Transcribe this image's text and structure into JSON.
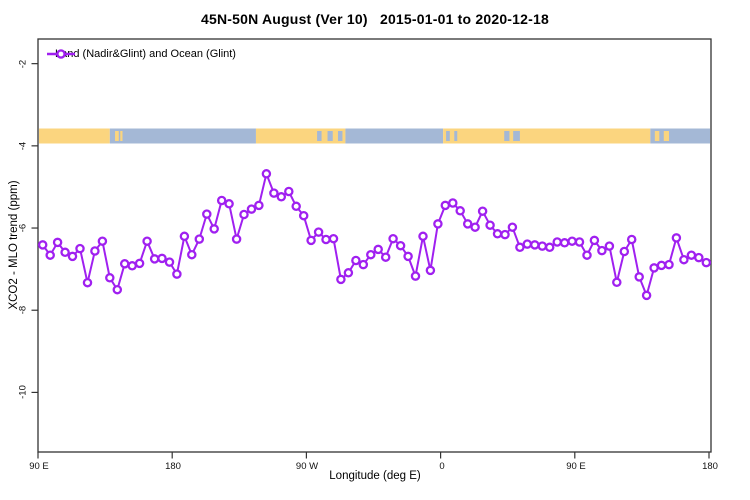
{
  "title": "45N-50N August (Ver 10)   2015-01-01 to 2020-12-18",
  "legend": {
    "label": "Land (Nadir&Glint) and Ocean (Glint)",
    "marker": "open-circle-on-line",
    "series_color": "#A020F0"
  },
  "axes": {
    "x": {
      "label": "Longitude (deg E)",
      "range_deg": [
        90,
        540
      ],
      "ticks": [
        {
          "lon": 90,
          "label": "90 E"
        },
        {
          "lon": 180,
          "label": "180"
        },
        {
          "lon": 270,
          "label": "90 W"
        },
        {
          "lon": 360,
          "label": "0"
        },
        {
          "lon": 450,
          "label": "90 E"
        },
        {
          "lon": 540,
          "label": "180"
        }
      ]
    },
    "y": {
      "label": "XCO2 - MLO trend (ppm)",
      "range_ppm": [
        -11.45,
        -1.4
      ],
      "ticks": [
        {
          "v": -2,
          "label": "-2"
        },
        {
          "v": -4,
          "label": "-4"
        },
        {
          "v": -6,
          "label": "-6"
        },
        {
          "v": -8,
          "label": "-8"
        },
        {
          "v": -10,
          "label": "-10"
        }
      ]
    }
  },
  "surface_band": {
    "description": "land/ocean strip along 45N-50N",
    "land_color": "#FBD57F",
    "ocean_color": "#A4B8D6",
    "segments": [
      {
        "type": "land",
        "from": 90,
        "to": 137.5
      },
      {
        "type": "ocean",
        "from": 137.5,
        "to": 235.5
      },
      {
        "type": "land",
        "from": 235.5,
        "to": 295.5
      },
      {
        "type": "ocean",
        "from": 295.5,
        "to": 361
      },
      {
        "type": "land",
        "from": 361,
        "to": 500
      },
      {
        "type": "ocean",
        "from": 500,
        "to": 540
      }
    ],
    "specks": [
      {
        "type": "land",
        "from": 141,
        "to": 143.5
      },
      {
        "type": "land",
        "from": 144.5,
        "to": 146
      },
      {
        "type": "ocean",
        "from": 276.5,
        "to": 279.5
      },
      {
        "type": "ocean",
        "from": 283.5,
        "to": 287
      },
      {
        "type": "ocean",
        "from": 290.5,
        "to": 293.5
      },
      {
        "type": "ocean",
        "from": 363,
        "to": 365.5
      },
      {
        "type": "ocean",
        "from": 368.5,
        "to": 370.5
      },
      {
        "type": "ocean",
        "from": 402,
        "to": 405.5
      },
      {
        "type": "ocean",
        "from": 408,
        "to": 412.5
      },
      {
        "type": "land",
        "from": 503,
        "to": 506
      },
      {
        "type": "land",
        "from": 509,
        "to": 512.5
      }
    ]
  },
  "chart_data": {
    "type": "line",
    "title": "45N-50N August (Ver 10)   2015-01-01 to 2020-12-18",
    "xlabel": "Longitude (deg E)",
    "ylabel": "XCO2 - MLO trend (ppm)",
    "xlim": [
      90,
      540
    ],
    "ylim": [
      -11.45,
      -1.4
    ],
    "grid": false,
    "legend_position": "top-left",
    "marker": "open-circle",
    "x_start_deg": 92.5,
    "x_step_deg": 5,
    "series": [
      {
        "name": "Land (Nadir&Glint) and Ocean (Glint)",
        "color": "#A020F0",
        "values": [
          -6.41,
          -6.66,
          -6.35,
          -6.59,
          -6.69,
          -6.5,
          -7.33,
          -6.56,
          -6.32,
          -7.21,
          -7.5,
          -6.87,
          -6.92,
          -6.86,
          -6.32,
          -6.75,
          -6.74,
          -6.83,
          -7.12,
          -6.2,
          -6.65,
          -6.27,
          -5.66,
          -6.02,
          -5.33,
          -5.41,
          -6.27,
          -5.67,
          -5.54,
          -5.45,
          -4.68,
          -5.15,
          -5.24,
          -5.11,
          -5.47,
          -5.7,
          -6.3,
          -6.1,
          -6.28,
          -6.26,
          -7.25,
          -7.09,
          -6.79,
          -6.89,
          -6.65,
          -6.52,
          -6.71,
          -6.26,
          -6.43,
          -6.69,
          -7.17,
          -6.2,
          -7.03,
          -5.9,
          -5.45,
          -5.39,
          -5.58,
          -5.9,
          -5.98,
          -5.59,
          -5.93,
          -6.14,
          -6.16,
          -5.98,
          -6.47,
          -6.39,
          -6.41,
          -6.44,
          -6.47,
          -6.34,
          -6.36,
          -6.32,
          -6.34,
          -6.66,
          -6.3,
          -6.55,
          -6.44,
          -7.32,
          -6.57,
          -6.28,
          -7.19,
          -7.64,
          -6.97,
          -6.91,
          -6.89,
          -6.24,
          -6.77,
          -6.66,
          -6.72,
          -6.84
        ]
      }
    ]
  }
}
